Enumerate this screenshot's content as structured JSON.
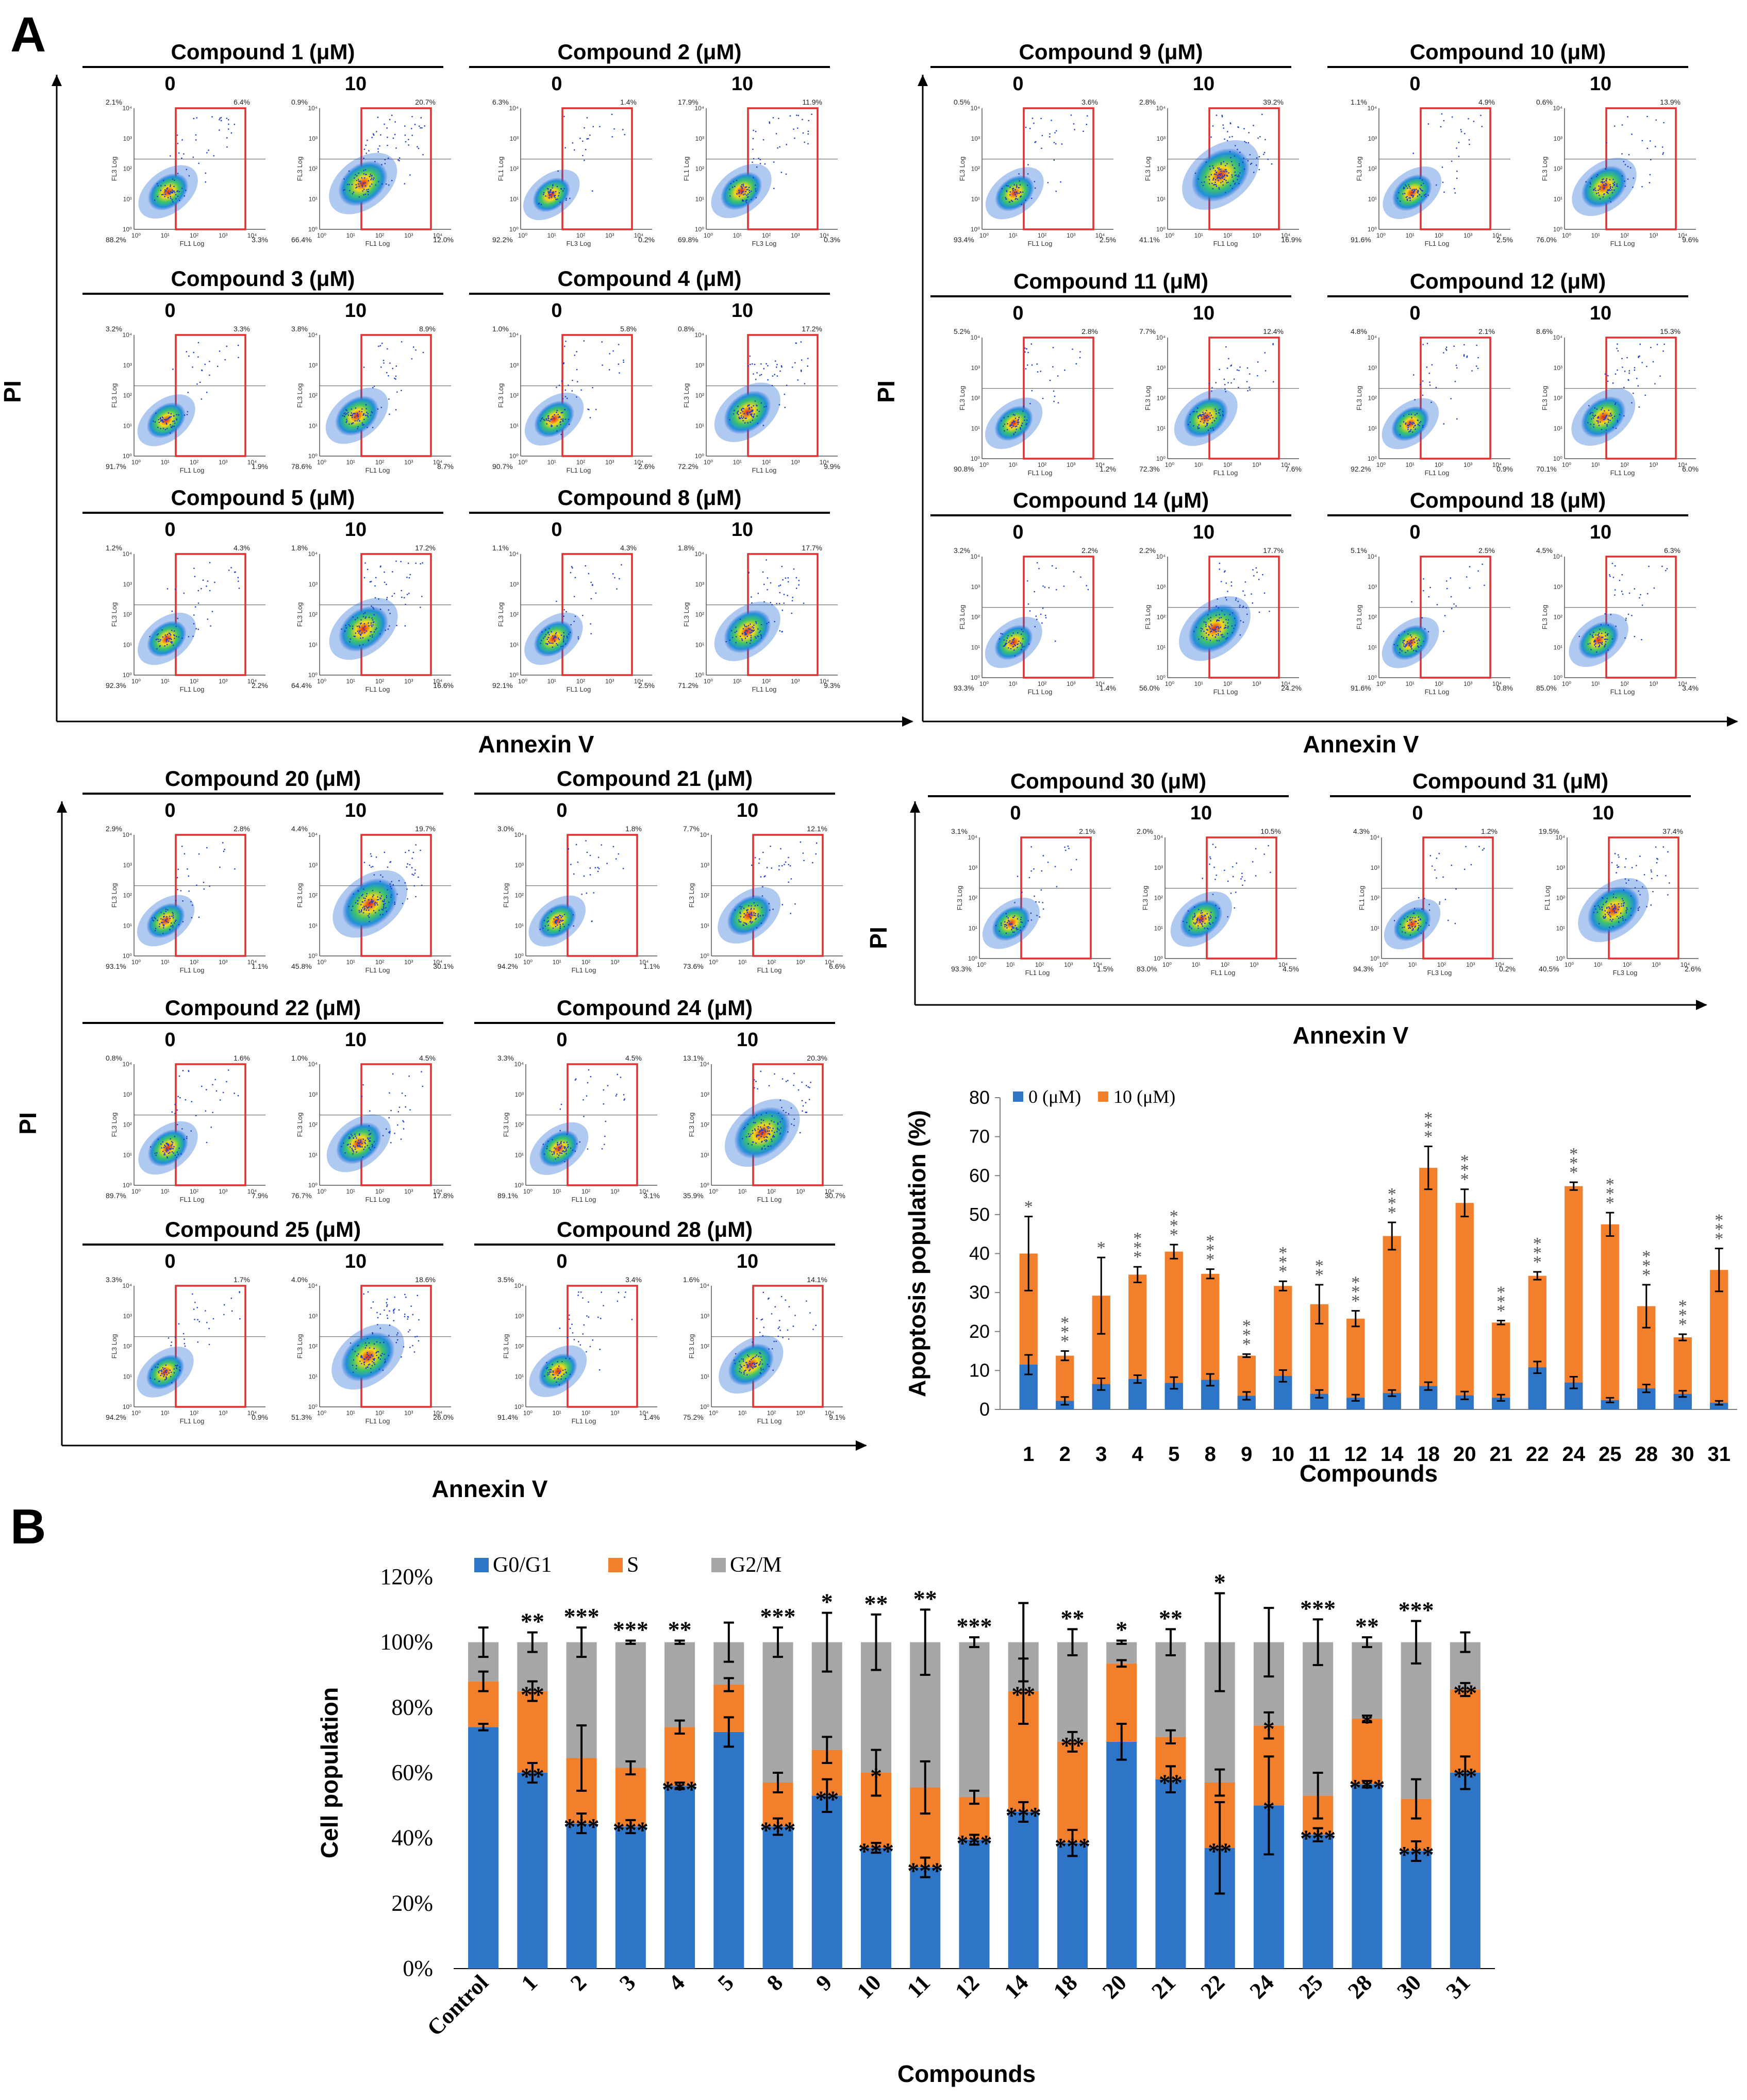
{
  "panel_a_label": "A",
  "panel_b_label": "B",
  "flow": {
    "conditions": [
      "0",
      "10"
    ],
    "channels": {
      "annexin": "FL1 Log",
      "pi": "FL3 Log",
      "alt_annexin": "FL3 Log",
      "alt_pi": "FL1 Log"
    },
    "decade_labels": [
      "10⁰",
      "10¹",
      "10²",
      "10³",
      "10⁴"
    ],
    "groups": [
      {
        "title": "Compound 1 (μM)",
        "plots": [
          [
            "2.1%",
            "6.4%",
            "88.2%",
            "3.3%"
          ],
          [
            "0.9%",
            "20.7%",
            "66.4%",
            "12.0%"
          ]
        ]
      },
      {
        "title": "Compound 2 (μM)",
        "swap": true,
        "plots": [
          [
            "6.3%",
            "1.4%",
            "92.2%",
            "0.2%"
          ],
          [
            "17.9%",
            "11.9%",
            "69.8%",
            "0.3%"
          ]
        ]
      },
      {
        "title": "Compound 3 (μM)",
        "plots": [
          [
            "3.2%",
            "3.3%",
            "91.7%",
            "1.9%"
          ],
          [
            "3.8%",
            "8.9%",
            "78.6%",
            "8.7%"
          ]
        ]
      },
      {
        "title": "Compound 4 (μM)",
        "plots": [
          [
            "1.0%",
            "5.8%",
            "90.7%",
            "2.6%"
          ],
          [
            "0.8%",
            "17.2%",
            "72.2%",
            "9.9%"
          ]
        ]
      },
      {
        "title": "Compound 5 (μM)",
        "plots": [
          [
            "1.2%",
            "4.3%",
            "92.3%",
            "2.2%"
          ],
          [
            "1.8%",
            "17.2%",
            "64.4%",
            "16.6%"
          ]
        ]
      },
      {
        "title": "Compound 8 (μM)",
        "plots": [
          [
            "1.1%",
            "4.3%",
            "92.1%",
            "2.5%"
          ],
          [
            "1.8%",
            "17.7%",
            "71.2%",
            "9.3%"
          ]
        ]
      },
      {
        "title": "Compound 9 (μM)",
        "plots": [
          [
            "0.5%",
            "3.6%",
            "93.4%",
            "2.5%"
          ],
          [
            "2.8%",
            "39.2%",
            "41.1%",
            "16.9%"
          ]
        ]
      },
      {
        "title": "Compound 10 (μM)",
        "plots": [
          [
            "1.1%",
            "4.9%",
            "91.6%",
            "2.5%"
          ],
          [
            "0.6%",
            "13.9%",
            "76.0%",
            "9.6%"
          ]
        ]
      },
      {
        "title": "Compound 11 (μM)",
        "plots": [
          [
            "5.2%",
            "2.8%",
            "90.8%",
            "1.2%"
          ],
          [
            "7.7%",
            "12.4%",
            "72.3%",
            "7.6%"
          ]
        ]
      },
      {
        "title": "Compound 12 (μM)",
        "plots": [
          [
            "4.8%",
            "2.1%",
            "92.2%",
            "0.9%"
          ],
          [
            "8.6%",
            "15.3%",
            "70.1%",
            "6.0%"
          ]
        ]
      },
      {
        "title": "Compound 14 (μM)",
        "plots": [
          [
            "3.2%",
            "2.2%",
            "93.3%",
            "1.4%"
          ],
          [
            "2.2%",
            "17.7%",
            "56.0%",
            "24.2%"
          ]
        ]
      },
      {
        "title": "Compound 18 (μM)",
        "plots": [
          [
            "5.1%",
            "2.5%",
            "91.6%",
            "0.8%"
          ],
          [
            "4.5%",
            "6.3%",
            "85.0%",
            "3.4%"
          ]
        ]
      },
      {
        "title": "Compound 20 (μM)",
        "plots": [
          [
            "2.9%",
            "2.8%",
            "93.1%",
            "1.1%"
          ],
          [
            "4.4%",
            "19.7%",
            "45.8%",
            "30.1%"
          ]
        ]
      },
      {
        "title": "Compound 21 (μM)",
        "plots": [
          [
            "3.0%",
            "1.8%",
            "94.2%",
            "1.1%"
          ],
          [
            "7.7%",
            "12.1%",
            "73.6%",
            "6.6%"
          ]
        ]
      },
      {
        "title": "Compound 22 (μM)",
        "plots": [
          [
            "0.8%",
            "1.6%",
            "89.7%",
            "7.9%"
          ],
          [
            "1.0%",
            "4.5%",
            "76.7%",
            "17.8%"
          ]
        ]
      },
      {
        "title": "Compound 24 (μM)",
        "plots": [
          [
            "3.3%",
            "4.5%",
            "89.1%",
            "3.1%"
          ],
          [
            "13.1%",
            "20.3%",
            "35.9%",
            "30.7%"
          ]
        ]
      },
      {
        "title": "Compound 25 (μM)",
        "plots": [
          [
            "3.3%",
            "1.7%",
            "94.2%",
            "0.9%"
          ],
          [
            "4.0%",
            "18.6%",
            "51.3%",
            "26.0%"
          ]
        ]
      },
      {
        "title": "Compound 28 (μM)",
        "plots": [
          [
            "3.5%",
            "3.4%",
            "91.4%",
            "1.4%"
          ],
          [
            "1.6%",
            "14.1%",
            "75.2%",
            "9.1%"
          ]
        ]
      },
      {
        "title": "Compound 30 (μM)",
        "plots": [
          [
            "3.1%",
            "2.1%",
            "93.3%",
            "1.5%"
          ],
          [
            "2.0%",
            "10.5%",
            "83.0%",
            "4.5%"
          ]
        ]
      },
      {
        "title": "Compound 31 (μM)",
        "swap": true,
        "plots": [
          [
            "4.3%",
            "1.2%",
            "94.3%",
            "0.2%"
          ],
          [
            "19.5%",
            "37.4%",
            "40.5%",
            "2.6%"
          ]
        ]
      }
    ],
    "blocks": [
      {
        "xlabel": "Annexin V",
        "ylabel": "PI"
      },
      {
        "xlabel": "Annexin V",
        "ylabel": "PI"
      },
      {
        "xlabel": "Annexin V",
        "ylabel": "PI"
      },
      {
        "xlabel": "Annexin V",
        "ylabel": "PI"
      }
    ]
  },
  "chart_data": [
    {
      "type": "bar",
      "stacked": true,
      "title": "",
      "xlabel": "Compounds",
      "ylabel": "Apoptosis  population (%)",
      "ylim": [
        0,
        80
      ],
      "yticks": [
        0,
        10,
        20,
        30,
        40,
        50,
        60,
        70,
        80
      ],
      "legend_position": "top-left",
      "categories": [
        "1",
        "2",
        "3",
        "4",
        "5",
        "8",
        "9",
        "10",
        "11",
        "12",
        "14",
        "18",
        "20",
        "21",
        "22",
        "24",
        "25",
        "28",
        "30",
        "31"
      ],
      "series": [
        {
          "name": "0 (μM)",
          "color": "#2e75c7",
          "values": [
            11.5,
            2.2,
            6.5,
            7.8,
            6.8,
            7.6,
            3.5,
            8.6,
            4,
            3,
            4.2,
            6,
            3.6,
            3,
            10.8,
            6.9,
            2.4,
            5.4,
            4,
            1.7
          ],
          "errors": [
            2.5,
            1,
            1.5,
            1,
            1.5,
            1.5,
            1,
            1.5,
            1,
            0.8,
            0.8,
            1,
            1,
            0.8,
            1.5,
            1.5,
            0.6,
            1,
            0.8,
            0.5
          ]
        },
        {
          "name": "10 (μM)",
          "color": "#f27f2b",
          "values": [
            40,
            13.8,
            29.2,
            34.6,
            40.5,
            34.8,
            13.8,
            31.7,
            27,
            23.3,
            44.5,
            62,
            53,
            22.3,
            34.3,
            57.3,
            47.5,
            26.5,
            18.5,
            35.8
          ],
          "errors": [
            9.5,
            1.2,
            9.8,
            2,
            1.8,
            1.2,
            0.4,
            1.2,
            5,
            2,
            3.5,
            5.5,
            3.5,
            0.5,
            1,
            1,
            3,
            5.5,
            0.8,
            5.5
          ]
        }
      ],
      "significance": [
        "*",
        "***",
        "*",
        "***",
        "***",
        "***",
        "***",
        "***",
        "**",
        "***",
        "***",
        "***",
        "***",
        "***",
        "***",
        "***",
        "***",
        "***",
        "***",
        "***"
      ]
    },
    {
      "type": "bar",
      "stacked": true,
      "title": "",
      "xlabel": "Compounds",
      "ylabel": "Cell population",
      "ylim": [
        0,
        120
      ],
      "ytick_labels": [
        "0%",
        "20%",
        "40%",
        "60%",
        "80%",
        "100%",
        "120%"
      ],
      "legend_position": "top",
      "categories": [
        "Control",
        "1",
        "2",
        "3",
        "4",
        "5",
        "8",
        "9",
        "10",
        "11",
        "12",
        "14",
        "18",
        "20",
        "21",
        "22",
        "24",
        "25",
        "28",
        "30",
        "31"
      ],
      "series": [
        {
          "name": "G0/G1",
          "color": "#2e75c7",
          "values": [
            74,
            60,
            44.5,
            43.5,
            56,
            72.5,
            43.5,
            53,
            37,
            31,
            39.5,
            48,
            38.5,
            69.5,
            58,
            37,
            50,
            41,
            56.5,
            36,
            60
          ],
          "errors": [
            1,
            3,
            3,
            2,
            1,
            4.5,
            2.5,
            5,
            1.5,
            3,
            1.5,
            3,
            4,
            5.5,
            4,
            14,
            15,
            2,
            1,
            3,
            5
          ]
        },
        {
          "name": "S",
          "color": "#f27f2b",
          "values": [
            14,
            25,
            20,
            18,
            18,
            14.5,
            13.5,
            14,
            23,
            24.5,
            13,
            37,
            31,
            24,
            13,
            20,
            24.5,
            12,
            20,
            16,
            25.5
          ],
          "errors": [
            3,
            3,
            10,
            2,
            2,
            2,
            3,
            4,
            7,
            8,
            2,
            10,
            3,
            1,
            2,
            4,
            4,
            7,
            1,
            6,
            2
          ]
        },
        {
          "name": "G2/M",
          "color": "#a6a6a6",
          "values": [
            12,
            15,
            35.5,
            38.5,
            26,
            13,
            43,
            33,
            40,
            44.5,
            47.5,
            15,
            30.5,
            6.5,
            29,
            43,
            25.5,
            47,
            23.5,
            48,
            14.5
          ],
          "errors": [
            4.5,
            3,
            4.5,
            0.5,
            0.5,
            6,
            4.5,
            9,
            8.5,
            10,
            1.5,
            12,
            4,
            0.5,
            4,
            15,
            10.5,
            7,
            1.5,
            6.5,
            3
          ]
        }
      ],
      "significance_g2m": [
        "",
        "**",
        "***",
        "***",
        "**",
        "",
        "***",
        "*",
        "**",
        "**",
        "***",
        "",
        "**",
        "*",
        "**",
        "*",
        "",
        "***",
        "**",
        "***",
        ""
      ],
      "significance_s": [
        "",
        "**",
        "",
        "",
        "",
        "",
        "",
        "",
        "*",
        "",
        "",
        "**",
        "**",
        "",
        "",
        "",
        "*",
        "",
        "*",
        "",
        "**"
      ],
      "significance_g1": [
        "",
        "**",
        "***",
        "***",
        "***",
        "",
        "***",
        "**",
        "***",
        "***",
        "***",
        "***",
        "***",
        "",
        "**",
        "**",
        "*",
        "***",
        "***",
        "***",
        "**"
      ]
    }
  ]
}
